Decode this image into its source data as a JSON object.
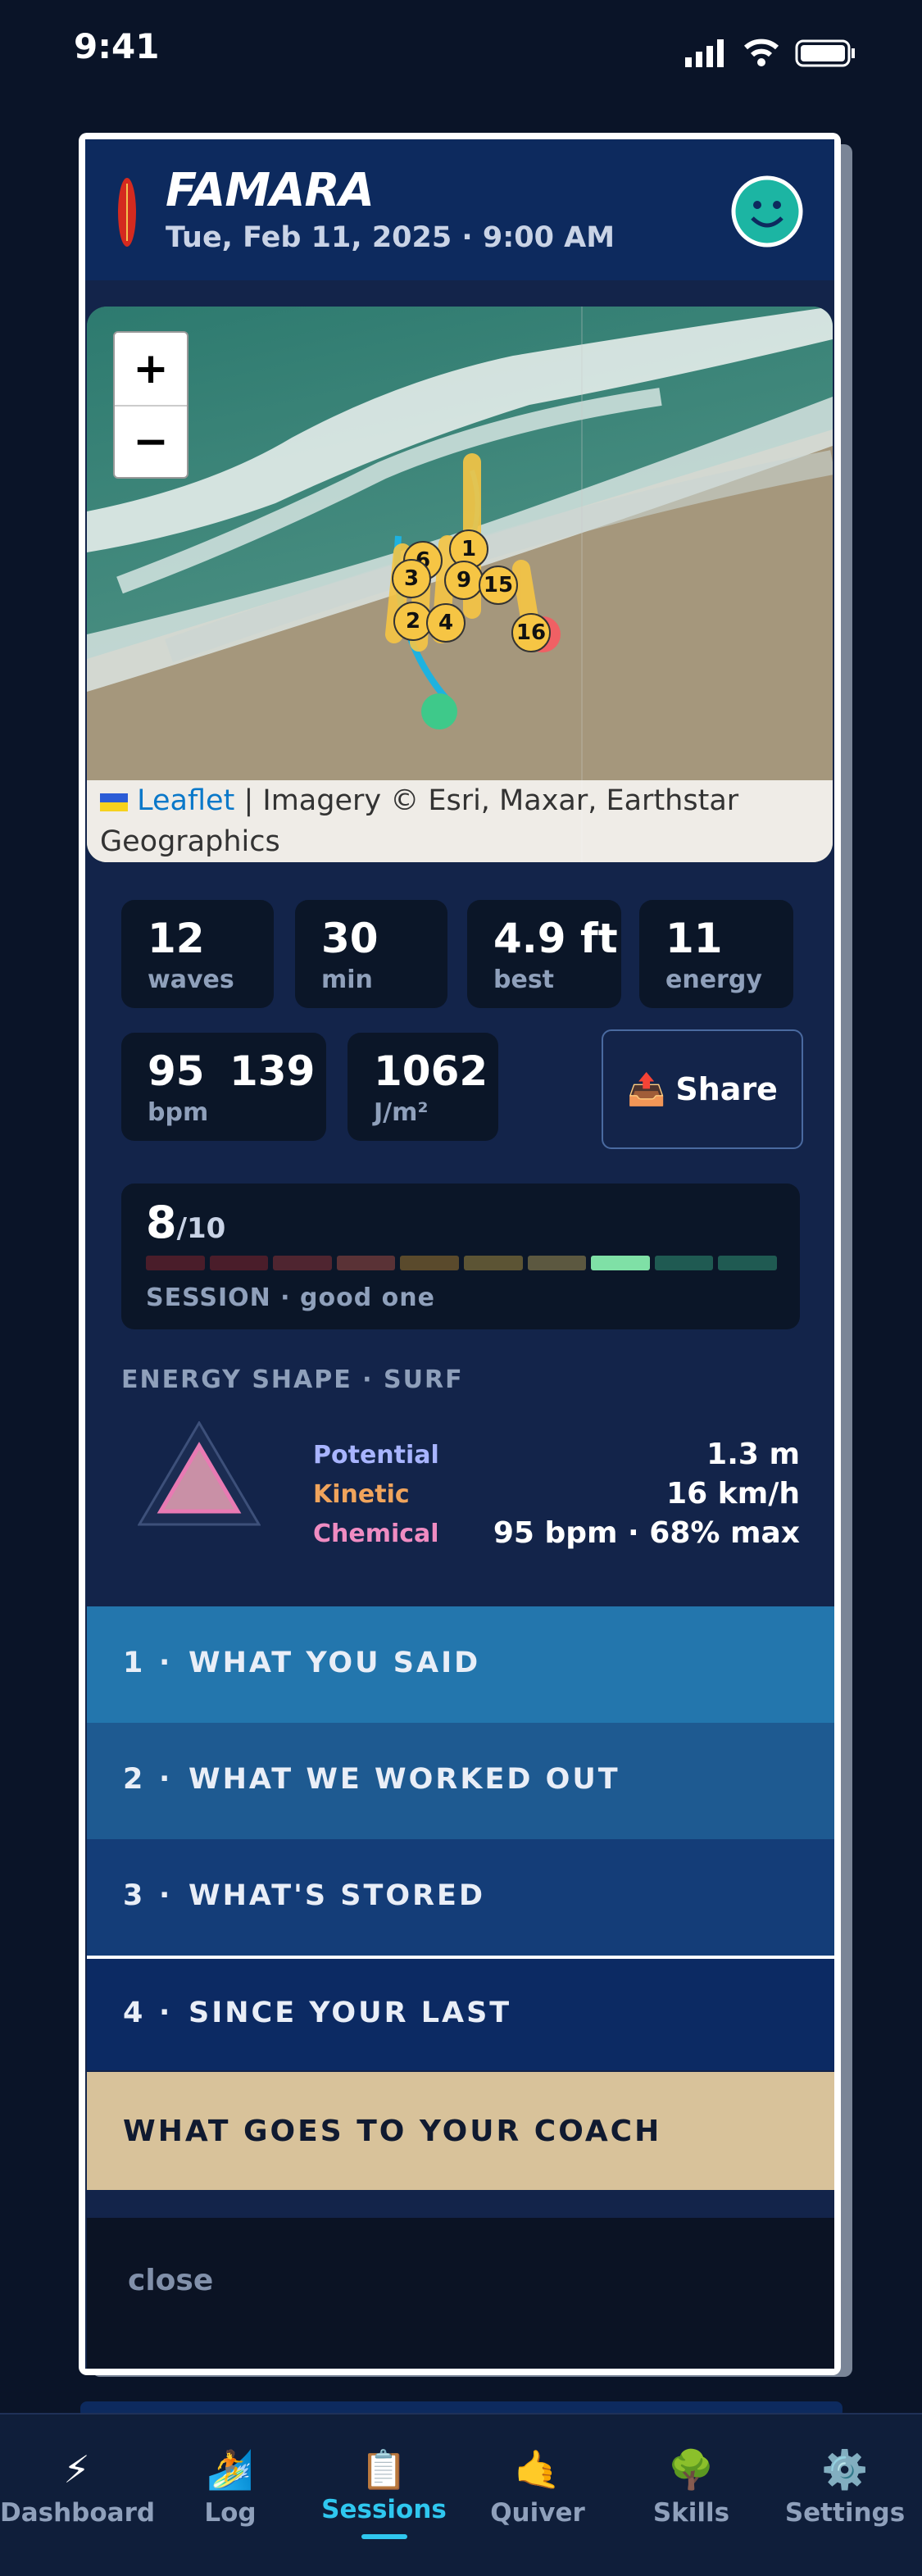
{
  "status": {
    "time": "9:41"
  },
  "header": {
    "title": "FAMARA",
    "date": "Tue, Feb 11, 2025 · 9:00 AM"
  },
  "map": {
    "zoom_in": "+",
    "zoom_out": "−",
    "markers": [
      "6",
      "1",
      "3",
      "9",
      "15",
      "2",
      "4",
      "16"
    ],
    "attribution_link": "Leaflet",
    "attribution": "| Imagery © Esri, Maxar, Earthstar Geographics"
  },
  "stats": [
    {
      "value": "12",
      "label": "waves"
    },
    {
      "value": "30",
      "label": "min"
    },
    {
      "value": "4.9 ft",
      "label": "best"
    },
    {
      "value": "11",
      "label": "energy"
    },
    {
      "value": "95",
      "value2": "139",
      "label": "bpm"
    },
    {
      "value": "1062",
      "label": "J/m²"
    }
  ],
  "share": {
    "icon": "📤",
    "label": "Share"
  },
  "score": {
    "value": "8",
    "max": "/10",
    "caption": "SESSION · good one"
  },
  "energy": {
    "heading": "ENERGY SHAPE · SURF",
    "rows": [
      {
        "name": "Potential",
        "value": "1.3 m"
      },
      {
        "name": "Kinetic",
        "value": "16 km/h"
      },
      {
        "name": "Chemical",
        "value": "95 bpm · 68% max"
      }
    ]
  },
  "sections": [
    {
      "num": "1",
      "sep": "·",
      "title": "WHAT YOU SAID"
    },
    {
      "num": "2",
      "sep": "·",
      "title": "WHAT WE WORKED OUT"
    },
    {
      "num": "3",
      "sep": "·",
      "title": "WHAT'S STORED"
    },
    {
      "num": "4",
      "sep": "·",
      "title": "SINCE YOUR LAST"
    }
  ],
  "coach": "WHAT GOES TO YOUR COACH",
  "close": "close",
  "nav": [
    {
      "icon": "⚡",
      "label": "Dashboard"
    },
    {
      "icon": "🏄",
      "label": "Log"
    },
    {
      "icon": "📋",
      "label": "Sessions"
    },
    {
      "icon": "🤙",
      "label": "Quiver"
    },
    {
      "icon": "🌳",
      "label": "Skills"
    },
    {
      "icon": "⚙️",
      "label": "Settings"
    }
  ]
}
